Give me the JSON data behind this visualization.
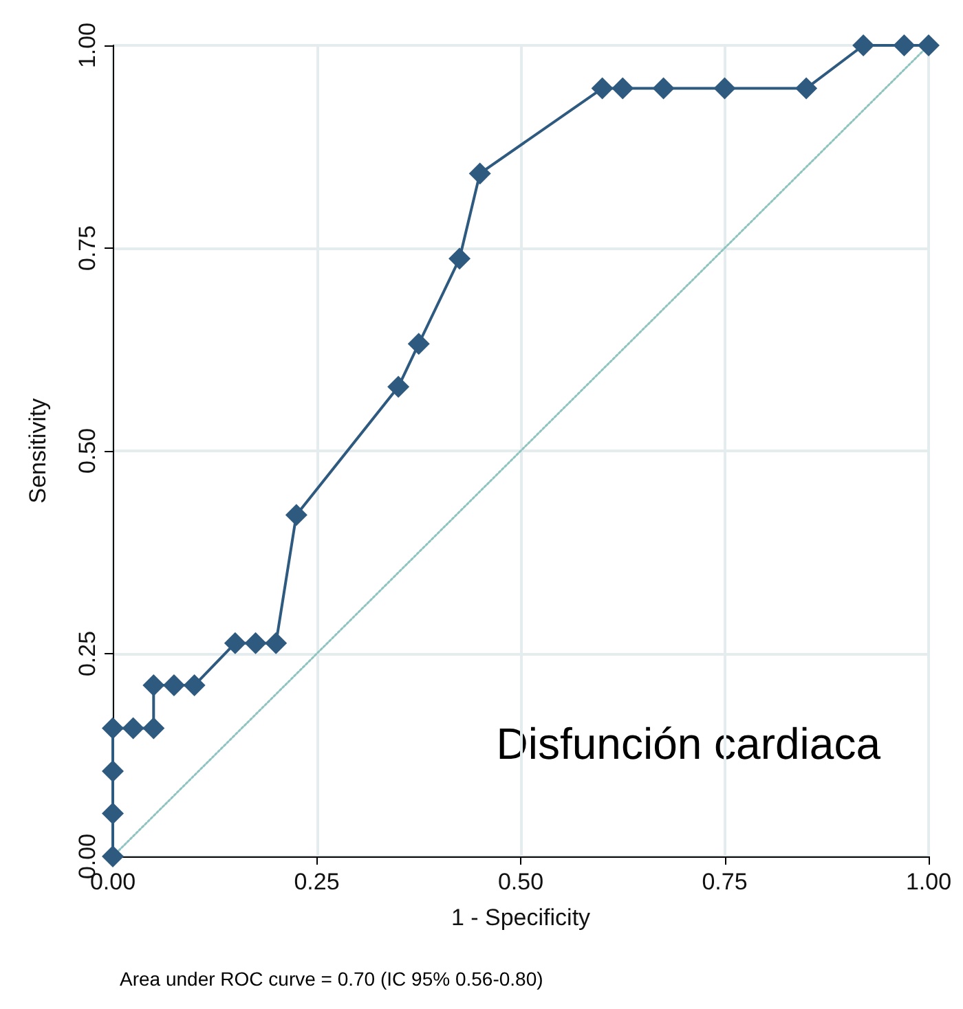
{
  "chart_data": {
    "type": "line",
    "xlabel": "1 - Specificity",
    "ylabel": "Sensitivity",
    "annotations": [
      "Disfunción cardiaca",
      "Area under ROC curve = 0.70 (IC 95% 0.56-0.80)"
    ],
    "xlim": [
      0,
      1
    ],
    "ylim": [
      0,
      1
    ],
    "xticks": [
      {
        "value": 0,
        "label": "0.00"
      },
      {
        "value": 0.25,
        "label": "0.25"
      },
      {
        "value": 0.5,
        "label": "0.50"
      },
      {
        "value": 0.75,
        "label": "0.75"
      },
      {
        "value": 1,
        "label": "1.00"
      }
    ],
    "yticks": [
      {
        "value": 0,
        "label": "0.00"
      },
      {
        "value": 0.25,
        "label": "0.25"
      },
      {
        "value": 0.5,
        "label": "0.50"
      },
      {
        "value": 0.75,
        "label": "0.75"
      },
      {
        "value": 1,
        "label": "1.00"
      }
    ],
    "grid": true,
    "series": [
      {
        "color": "#2e5a80",
        "marker": "diamond",
        "line_style": "solid",
        "x": [
          0,
          0,
          0,
          0,
          0.025,
          0.05,
          0.05,
          0.075,
          0.1,
          0.15,
          0.175,
          0.2,
          0.225,
          0.35,
          0.375,
          0.425,
          0.45,
          0.6,
          0.625,
          0.675,
          0.75,
          0.85,
          0.92,
          0.97,
          1
        ],
        "values": [
          0,
          0.053,
          0.105,
          0.158,
          0.158,
          0.158,
          0.211,
          0.211,
          0.211,
          0.263,
          0.263,
          0.263,
          0.421,
          0.579,
          0.632,
          0.737,
          0.842,
          0.947,
          0.947,
          0.947,
          0.947,
          0.947,
          1,
          1,
          1
        ]
      },
      {
        "color": "#8fc4c0",
        "marker": "none",
        "line_style": "dotted",
        "x": [
          0,
          1
        ],
        "values": [
          0,
          1
        ]
      }
    ]
  }
}
